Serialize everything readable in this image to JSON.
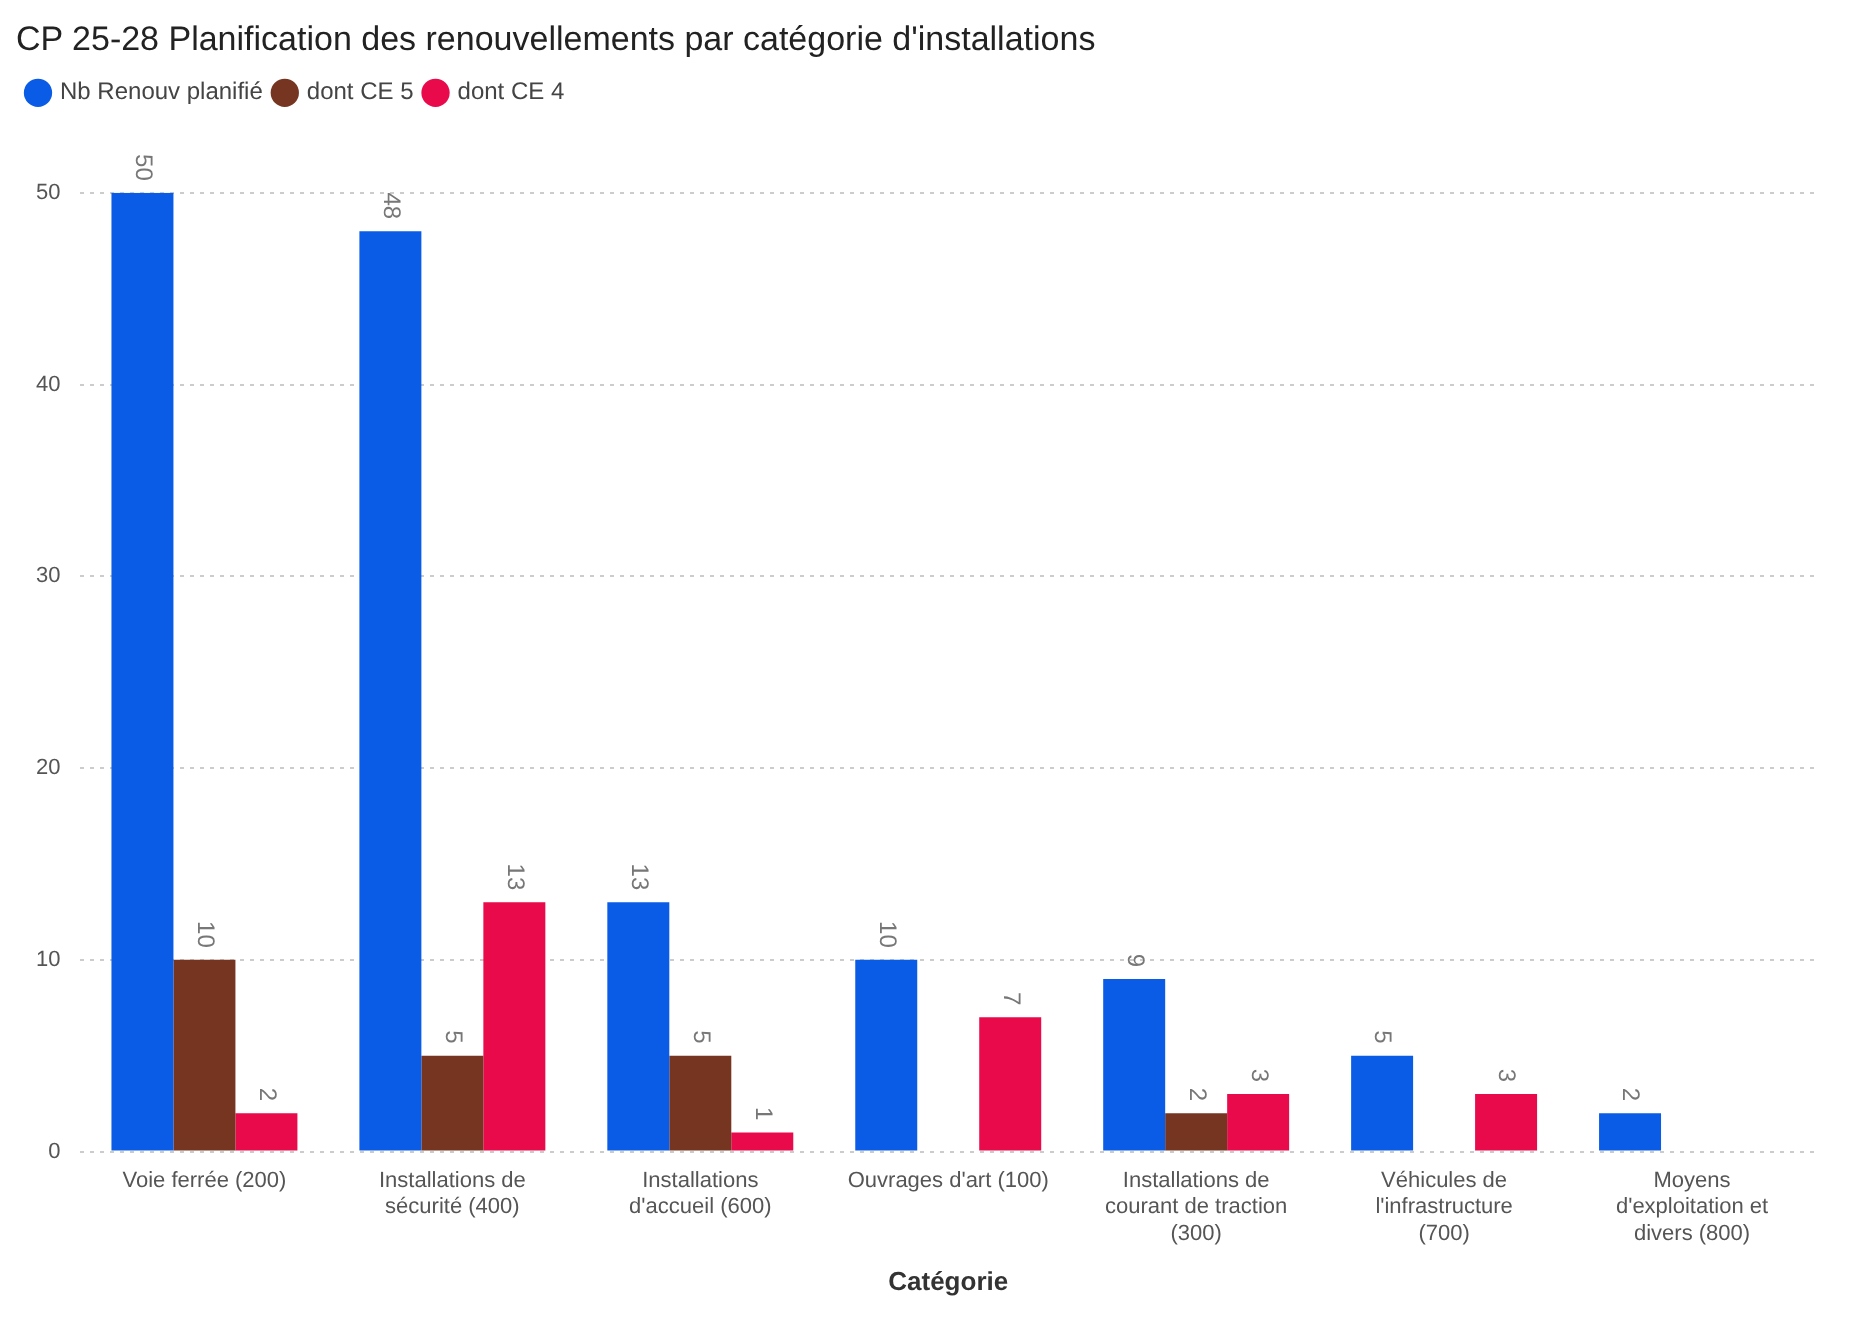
{
  "chart_data": {
    "type": "bar",
    "title": "CP 25-28 Planification des renouvellements par catégorie d'installations",
    "xlabel": "Catégorie",
    "categories": [
      "Voie ferrée (200)",
      "Installations de sécurité (400)",
      "Installations d'accueil (600)",
      "Ouvrages d'art (100)",
      "Installations de courant de traction (300)",
      "Véhicules de l'infrastructure (700)",
      "Moyens d'exploitation et divers (800)"
    ],
    "series": [
      {
        "name": "Nb Renouv planifié",
        "color": "#0a5ce6",
        "values": [
          50,
          48,
          13,
          10,
          9,
          5,
          2
        ]
      },
      {
        "name": "dont CE 5",
        "color": "#763520",
        "values": [
          10,
          5,
          5,
          null,
          2,
          null,
          null
        ]
      },
      {
        "name": "dont CE 4",
        "color": "#e80a4a",
        "values": [
          2,
          13,
          1,
          7,
          3,
          3,
          null
        ]
      }
    ],
    "ylim": [
      0,
      50
    ],
    "yticks": [
      0,
      10,
      20,
      30,
      40,
      50
    ],
    "grid": "y",
    "legend": "top left",
    "data_labels": true
  }
}
